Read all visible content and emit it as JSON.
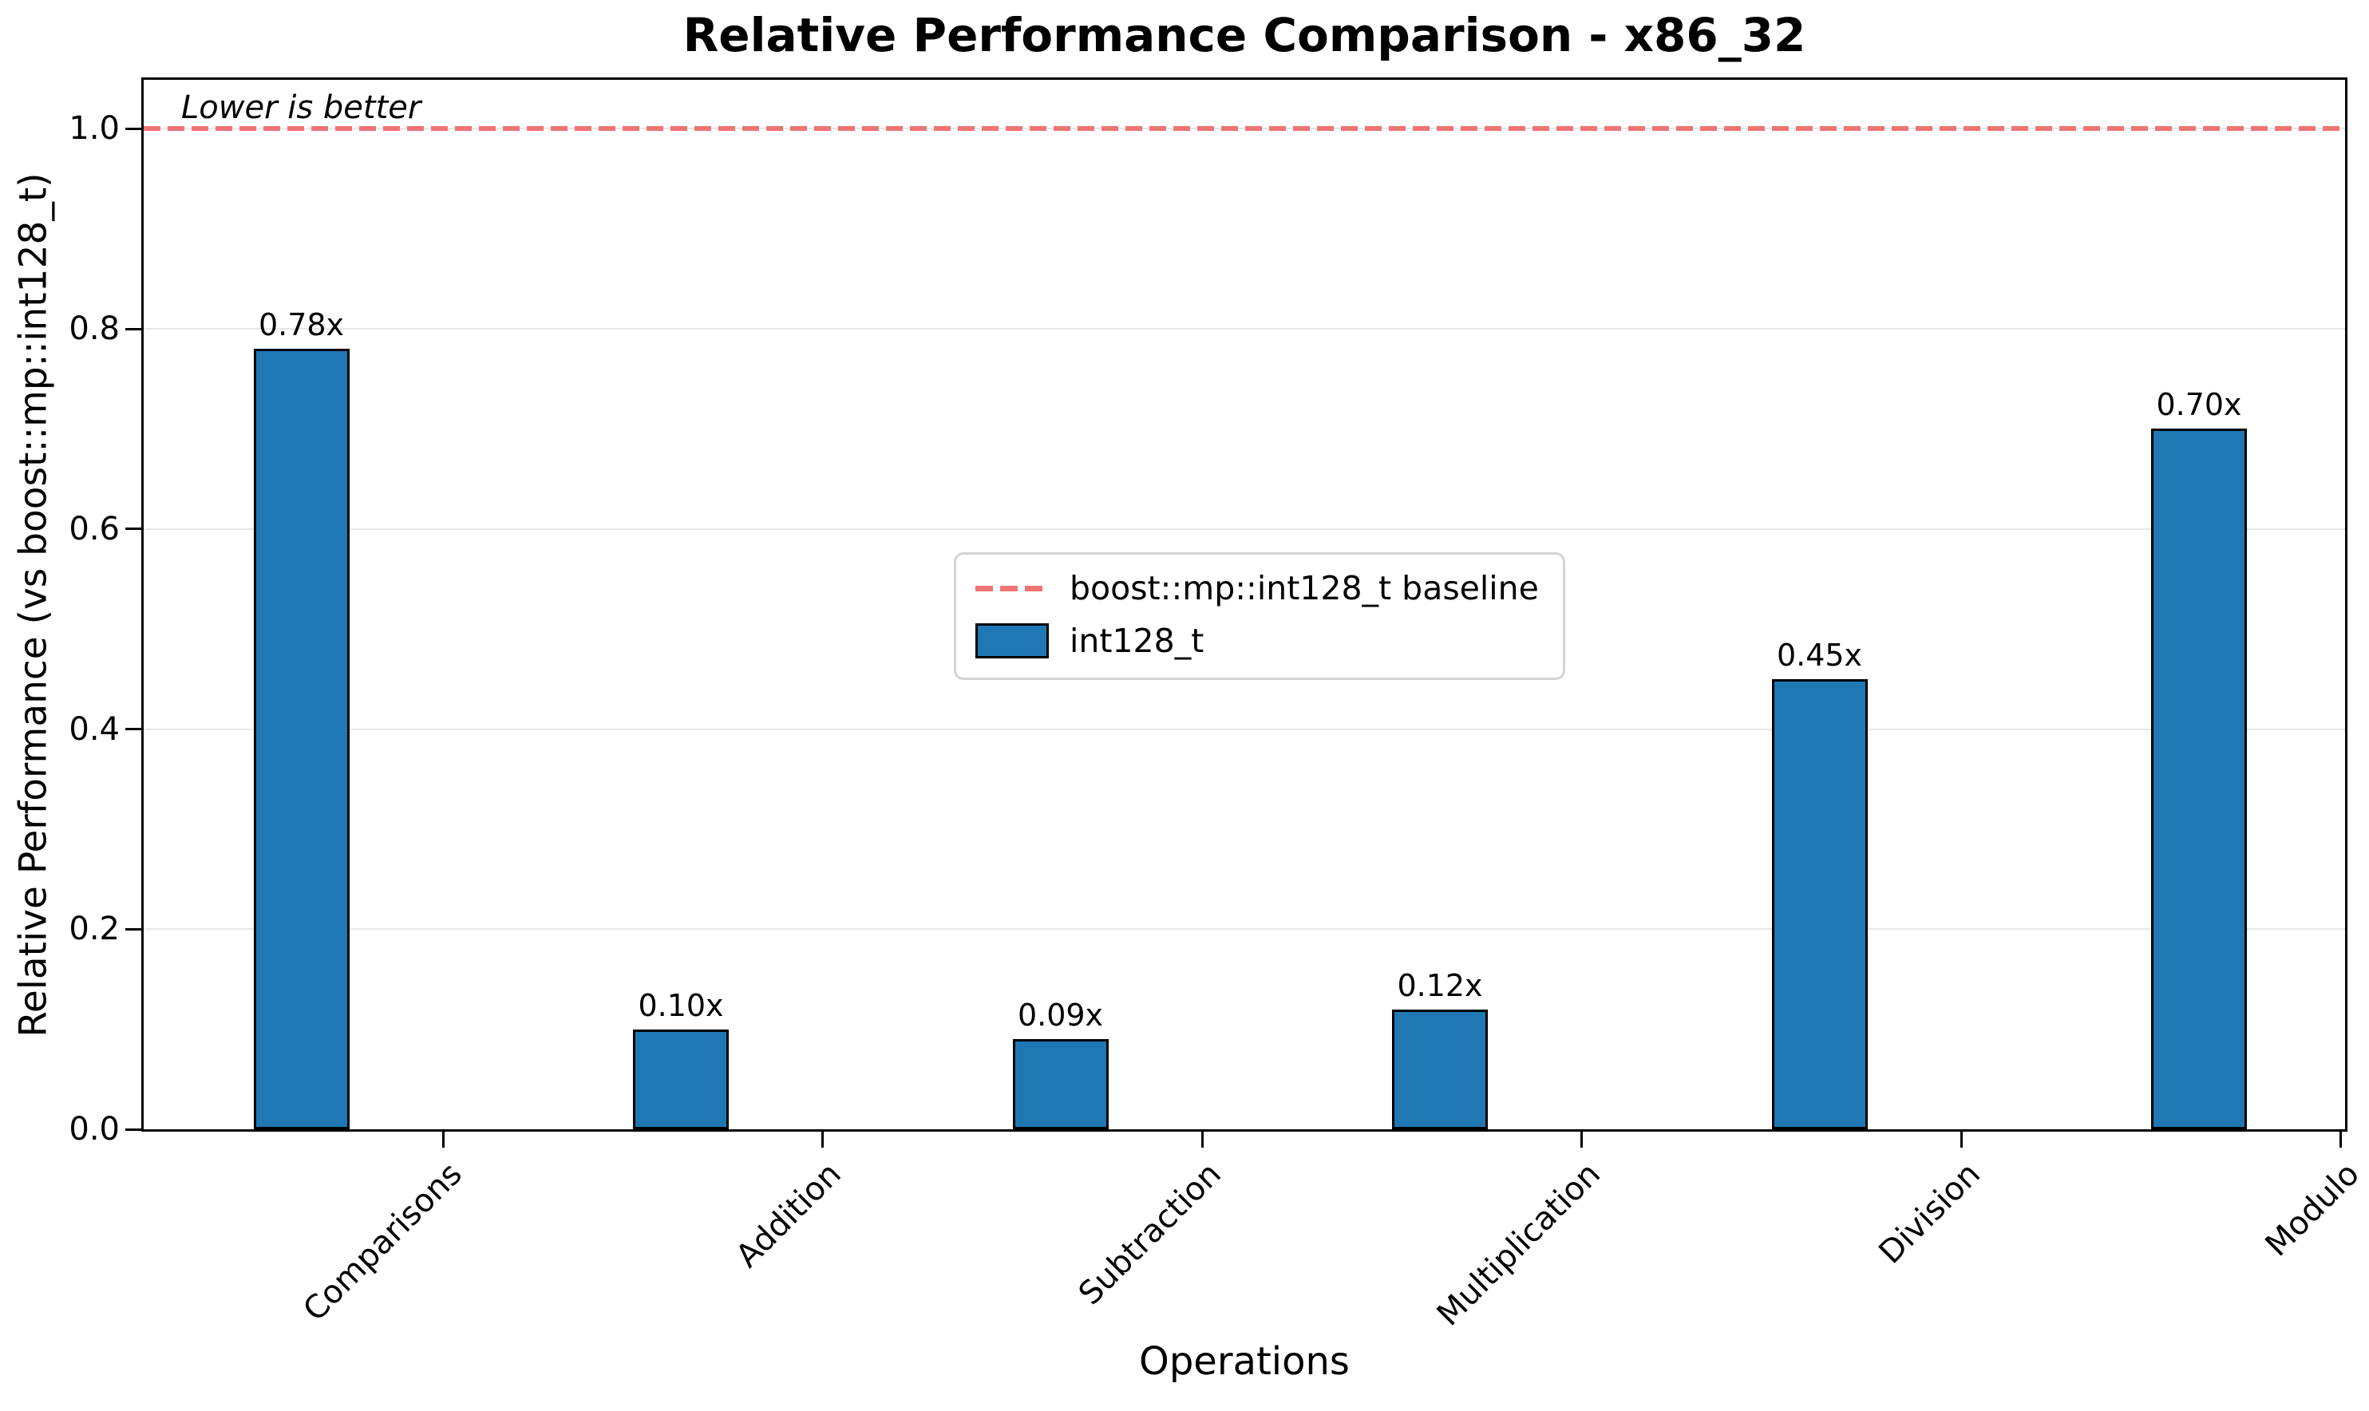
{
  "chart_data": {
    "type": "bar",
    "title": "Relative Performance Comparison - x86_32",
    "xlabel": "Operations",
    "ylabel": "Relative Performance (vs boost::mp::int128_t)",
    "annotation": "Lower is better",
    "categories": [
      "Comparisons",
      "Addition",
      "Subtraction",
      "Multiplication",
      "Division",
      "Modulo"
    ],
    "values": [
      0.78,
      0.1,
      0.09,
      0.12,
      0.45,
      0.7
    ],
    "bar_labels": [
      "0.78x",
      "0.10x",
      "0.09x",
      "0.12x",
      "0.45x",
      "0.70x"
    ],
    "ytick_labels": [
      "0.0",
      "0.2",
      "0.4",
      "0.6",
      "0.8",
      "1.0"
    ],
    "yticks": [
      0.0,
      0.2,
      0.4,
      0.6,
      0.8,
      1.0
    ],
    "ylim": [
      0,
      1.049
    ],
    "baseline_value": 1.0,
    "grid": true,
    "legend_position": "center",
    "legend": [
      {
        "label": "boost::mp::int128_t baseline",
        "type": "dashed-line"
      },
      {
        "label": "int128_t",
        "type": "patch"
      }
    ],
    "colors": {
      "bar": "#1f77b4",
      "bar_edge": "#000000",
      "baseline": "#ef7474",
      "grid": "#e7e7e7",
      "legend_border": "#d4d4d4",
      "text": "#000000"
    }
  }
}
